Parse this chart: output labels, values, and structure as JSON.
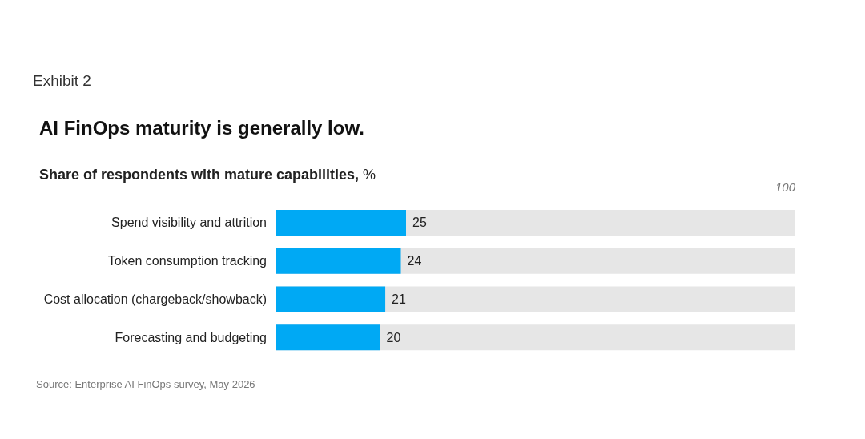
{
  "chart_data": {
    "type": "bar",
    "orientation": "horizontal",
    "title": "AI FinOps maturity is generally low.",
    "subtitle": "Share of respondents with mature capabilities, %",
    "categories": [
      "Spend visibility and attrition",
      "Token consumption tracking",
      "Cost allocation (chargeback/showback)",
      "Forecasting and budgeting"
    ],
    "values": [
      25,
      24,
      21,
      20
    ],
    "color": "#00a9f4",
    "xlim": [
      0,
      100
    ],
    "data_labels": true,
    "grid": false,
    "annotations": [
      "Exhibit 2",
      "100",
      "Source: Enterprise AI FinOps survey, May 2026"
    ]
  }
}
